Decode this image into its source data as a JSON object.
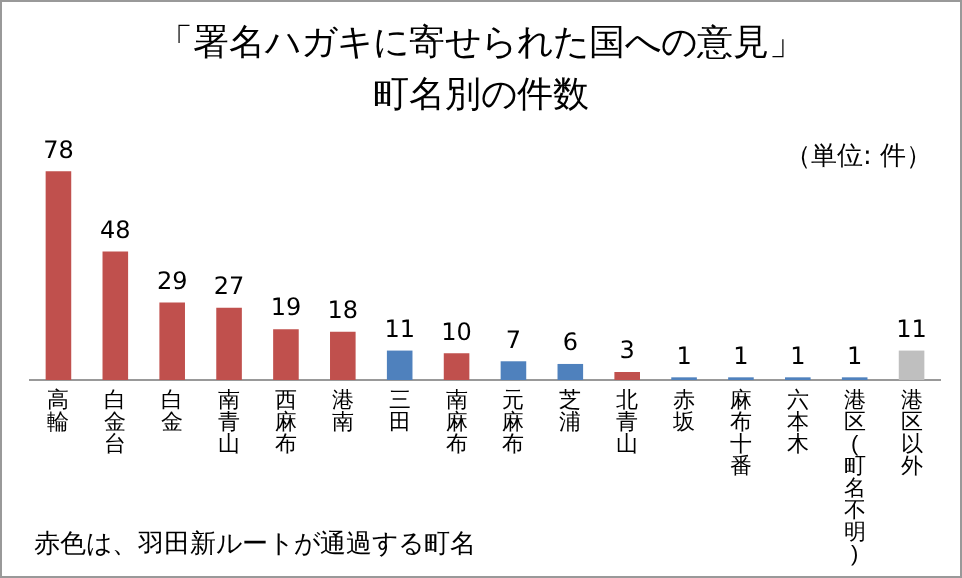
{
  "chart_data": {
    "type": "bar",
    "title": "「署名ハガキに寄せられた国への意見」",
    "subtitle": "町名別の件数",
    "categories": [
      "高輪",
      "白金台",
      "白金",
      "南青山",
      "西麻布",
      "港南",
      "三田",
      "南麻布",
      "元麻布",
      "芝浦",
      "北青山",
      "赤坂",
      "麻布十番",
      "六本木",
      "港区(町名不明)",
      "港区以外"
    ],
    "values": [
      78,
      48,
      29,
      27,
      19,
      18,
      11,
      10,
      7,
      6,
      3,
      1,
      1,
      1,
      1,
      11
    ],
    "colors": [
      "#c0504d",
      "#c0504d",
      "#c0504d",
      "#c0504d",
      "#c0504d",
      "#c0504d",
      "#4f81bd",
      "#c0504d",
      "#4f81bd",
      "#4f81bd",
      "#c0504d",
      "#4f81bd",
      "#4f81bd",
      "#4f81bd",
      "#4f81bd",
      "#bfbfbf"
    ],
    "data_labels": true,
    "grid": false,
    "legend": false,
    "annotations": [
      "（単位: 件）",
      "赤色は、羽田新ルートが通過する町名"
    ]
  }
}
